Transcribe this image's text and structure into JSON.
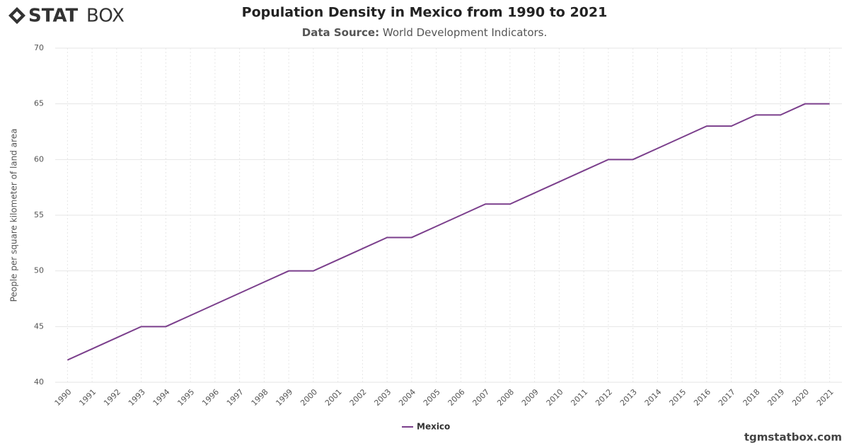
{
  "logo": {
    "bold": "STAT",
    "light": "BOX"
  },
  "footer": "tgmstatbox.com",
  "chart_data": {
    "type": "line",
    "title": "Population Density in Mexico from 1990 to 2021",
    "subtitle_label": "Data Source:",
    "subtitle": "World Development Indicators.",
    "y_label": "People per square kilometer of land area",
    "categories": [
      "1990",
      "1991",
      "1992",
      "1993",
      "1994",
      "1995",
      "1996",
      "1997",
      "1998",
      "1999",
      "2000",
      "2001",
      "2002",
      "2003",
      "2004",
      "2005",
      "2006",
      "2007",
      "2008",
      "2009",
      "2010",
      "2011",
      "2012",
      "2013",
      "2014",
      "2015",
      "2016",
      "2017",
      "2018",
      "2019",
      "2020",
      "2021"
    ],
    "series": [
      {
        "name": "Mexico",
        "color": "#7b3f8c",
        "values": [
          42,
          43,
          44,
          45,
          45,
          46,
          47,
          48,
          49,
          50,
          50,
          51,
          52,
          53,
          53,
          54,
          55,
          56,
          56,
          57,
          58,
          59,
          60,
          60,
          61,
          62,
          63,
          63,
          64,
          64,
          65,
          65
        ]
      }
    ],
    "ylim": [
      40,
      70
    ],
    "yticks": [
      40,
      45,
      50,
      55,
      60,
      65,
      70
    ],
    "grid": true
  }
}
